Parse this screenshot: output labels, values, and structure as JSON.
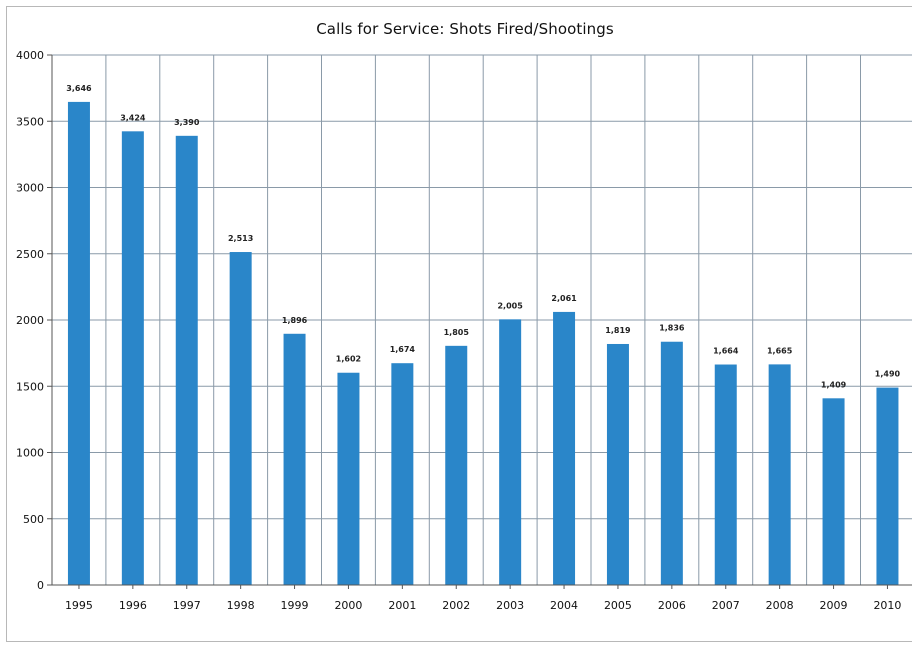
{
  "chart_data": {
    "type": "bar",
    "title": "Calls for Service: Shots Fired/Shootings",
    "xlabel": "",
    "ylabel": "",
    "categories": [
      "1995",
      "1996",
      "1997",
      "1998",
      "1999",
      "2000",
      "2001",
      "2002",
      "2003",
      "2004",
      "2005",
      "2006",
      "2007",
      "2008",
      "2009",
      "2010"
    ],
    "values": [
      3646,
      3424,
      3390,
      2513,
      1896,
      1602,
      1674,
      1805,
      2005,
      2061,
      1819,
      1836,
      1664,
      1665,
      1409,
      1490
    ],
    "data_labels": [
      "3,646",
      "3,424",
      "3,390",
      "2,513",
      "1,896",
      "1,602",
      "1,674",
      "1,805",
      "2,005",
      "2,061",
      "1,819",
      "1,836",
      "1,664",
      "1,665",
      "1,409",
      "1,490"
    ],
    "ylim": [
      0,
      4000
    ],
    "yticks": [
      0,
      500,
      1000,
      1500,
      2000,
      2500,
      3000,
      3500,
      4000
    ],
    "grid": true,
    "legend": "none",
    "bar_color": "#2a86c9",
    "grid_color": "#8a9aa8"
  }
}
